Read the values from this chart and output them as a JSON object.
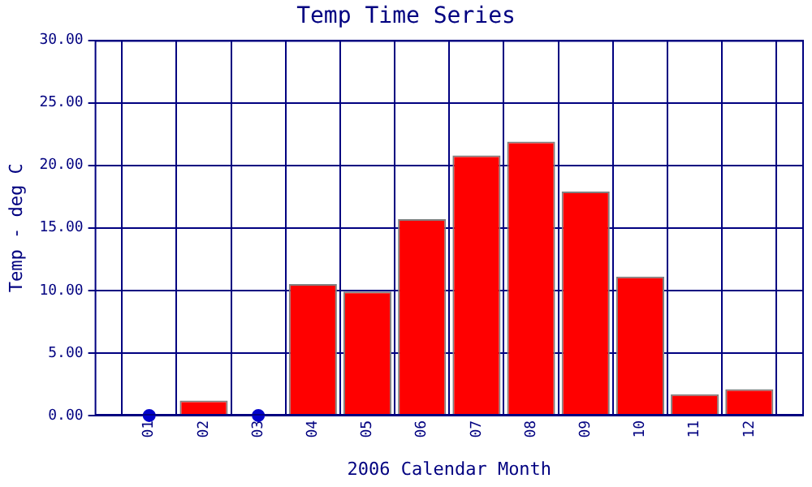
{
  "chart_data": {
    "type": "bar",
    "title": "Temp Time Series",
    "xlabel": "2006 Calendar Month",
    "ylabel": "Temp - deg C",
    "categories": [
      "01",
      "02",
      "03",
      "04",
      "05",
      "06",
      "07",
      "08",
      "09",
      "10",
      "11",
      "12"
    ],
    "series": [
      {
        "color": "#ff0000",
        "values": [
          null,
          1.2,
          null,
          10.5,
          9.9,
          15.7,
          20.8,
          21.9,
          17.9,
          11.1,
          1.7,
          2.1
        ]
      },
      {
        "type": "scatter",
        "color": "#0000cc",
        "x": [
          "01",
          "03"
        ],
        "values": [
          0,
          0
        ]
      }
    ],
    "ylim": [
      0,
      30
    ],
    "yticks": [
      {
        "value": 0,
        "label": "0.00"
      },
      {
        "value": 5,
        "label": "5.00"
      },
      {
        "value": 10,
        "label": "10.00"
      },
      {
        "value": 15,
        "label": "15.00"
      },
      {
        "value": 20,
        "label": "20.00"
      },
      {
        "value": 25,
        "label": "25.00"
      },
      {
        "value": 30,
        "label": "30.00"
      }
    ],
    "grid": true,
    "marker": "circle"
  }
}
